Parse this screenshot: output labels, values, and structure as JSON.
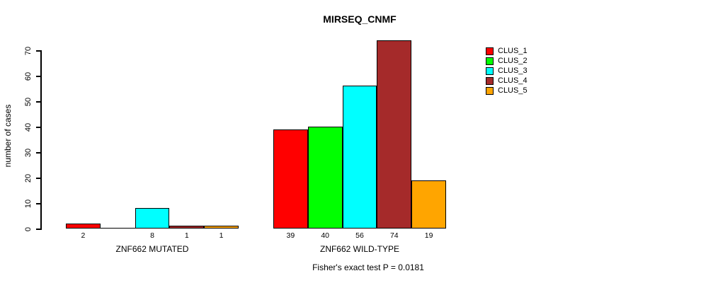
{
  "title": "MIRSEQ_CNMF",
  "y_axis": {
    "label": "number of cases",
    "ticks": [
      0,
      10,
      20,
      30,
      40,
      50,
      60,
      70
    ]
  },
  "footer": "Fisher's exact test P = 0.0181",
  "legend": {
    "items": [
      {
        "label": "CLUS_1",
        "color": "#FF0000"
      },
      {
        "label": "CLUS_2",
        "color": "#00FF00"
      },
      {
        "label": "CLUS_3",
        "color": "#00FFFF"
      },
      {
        "label": "CLUS_4",
        "color": "#A52A2A"
      },
      {
        "label": "CLUS_5",
        "color": "#FFA500"
      }
    ]
  },
  "chart_data": {
    "type": "bar",
    "title": "MIRSEQ_CNMF",
    "xlabel": "",
    "ylabel": "number of cases",
    "categories": [
      "ZNF662 MUTATED",
      "ZNF662 WILD-TYPE"
    ],
    "series": [
      {
        "name": "CLUS_1",
        "color": "#FF0000",
        "values": [
          2,
          39
        ]
      },
      {
        "name": "CLUS_2",
        "color": "#00FF00",
        "values": [
          0,
          40
        ]
      },
      {
        "name": "CLUS_3",
        "color": "#00FFFF",
        "values": [
          8,
          56
        ]
      },
      {
        "name": "CLUS_4",
        "color": "#A52A2A",
        "values": [
          1,
          74
        ]
      },
      {
        "name": "CLUS_5",
        "color": "#FFA500",
        "values": [
          1,
          19
        ]
      }
    ],
    "bar_value_labels": [
      [
        "2",
        "",
        "8",
        "1",
        "1"
      ],
      [
        "39",
        "40",
        "56",
        "74",
        "19"
      ]
    ],
    "ylim": [
      0,
      70
    ],
    "grid": false,
    "legend_position": "right",
    "annotation": "Fisher's exact test P = 0.0181"
  }
}
